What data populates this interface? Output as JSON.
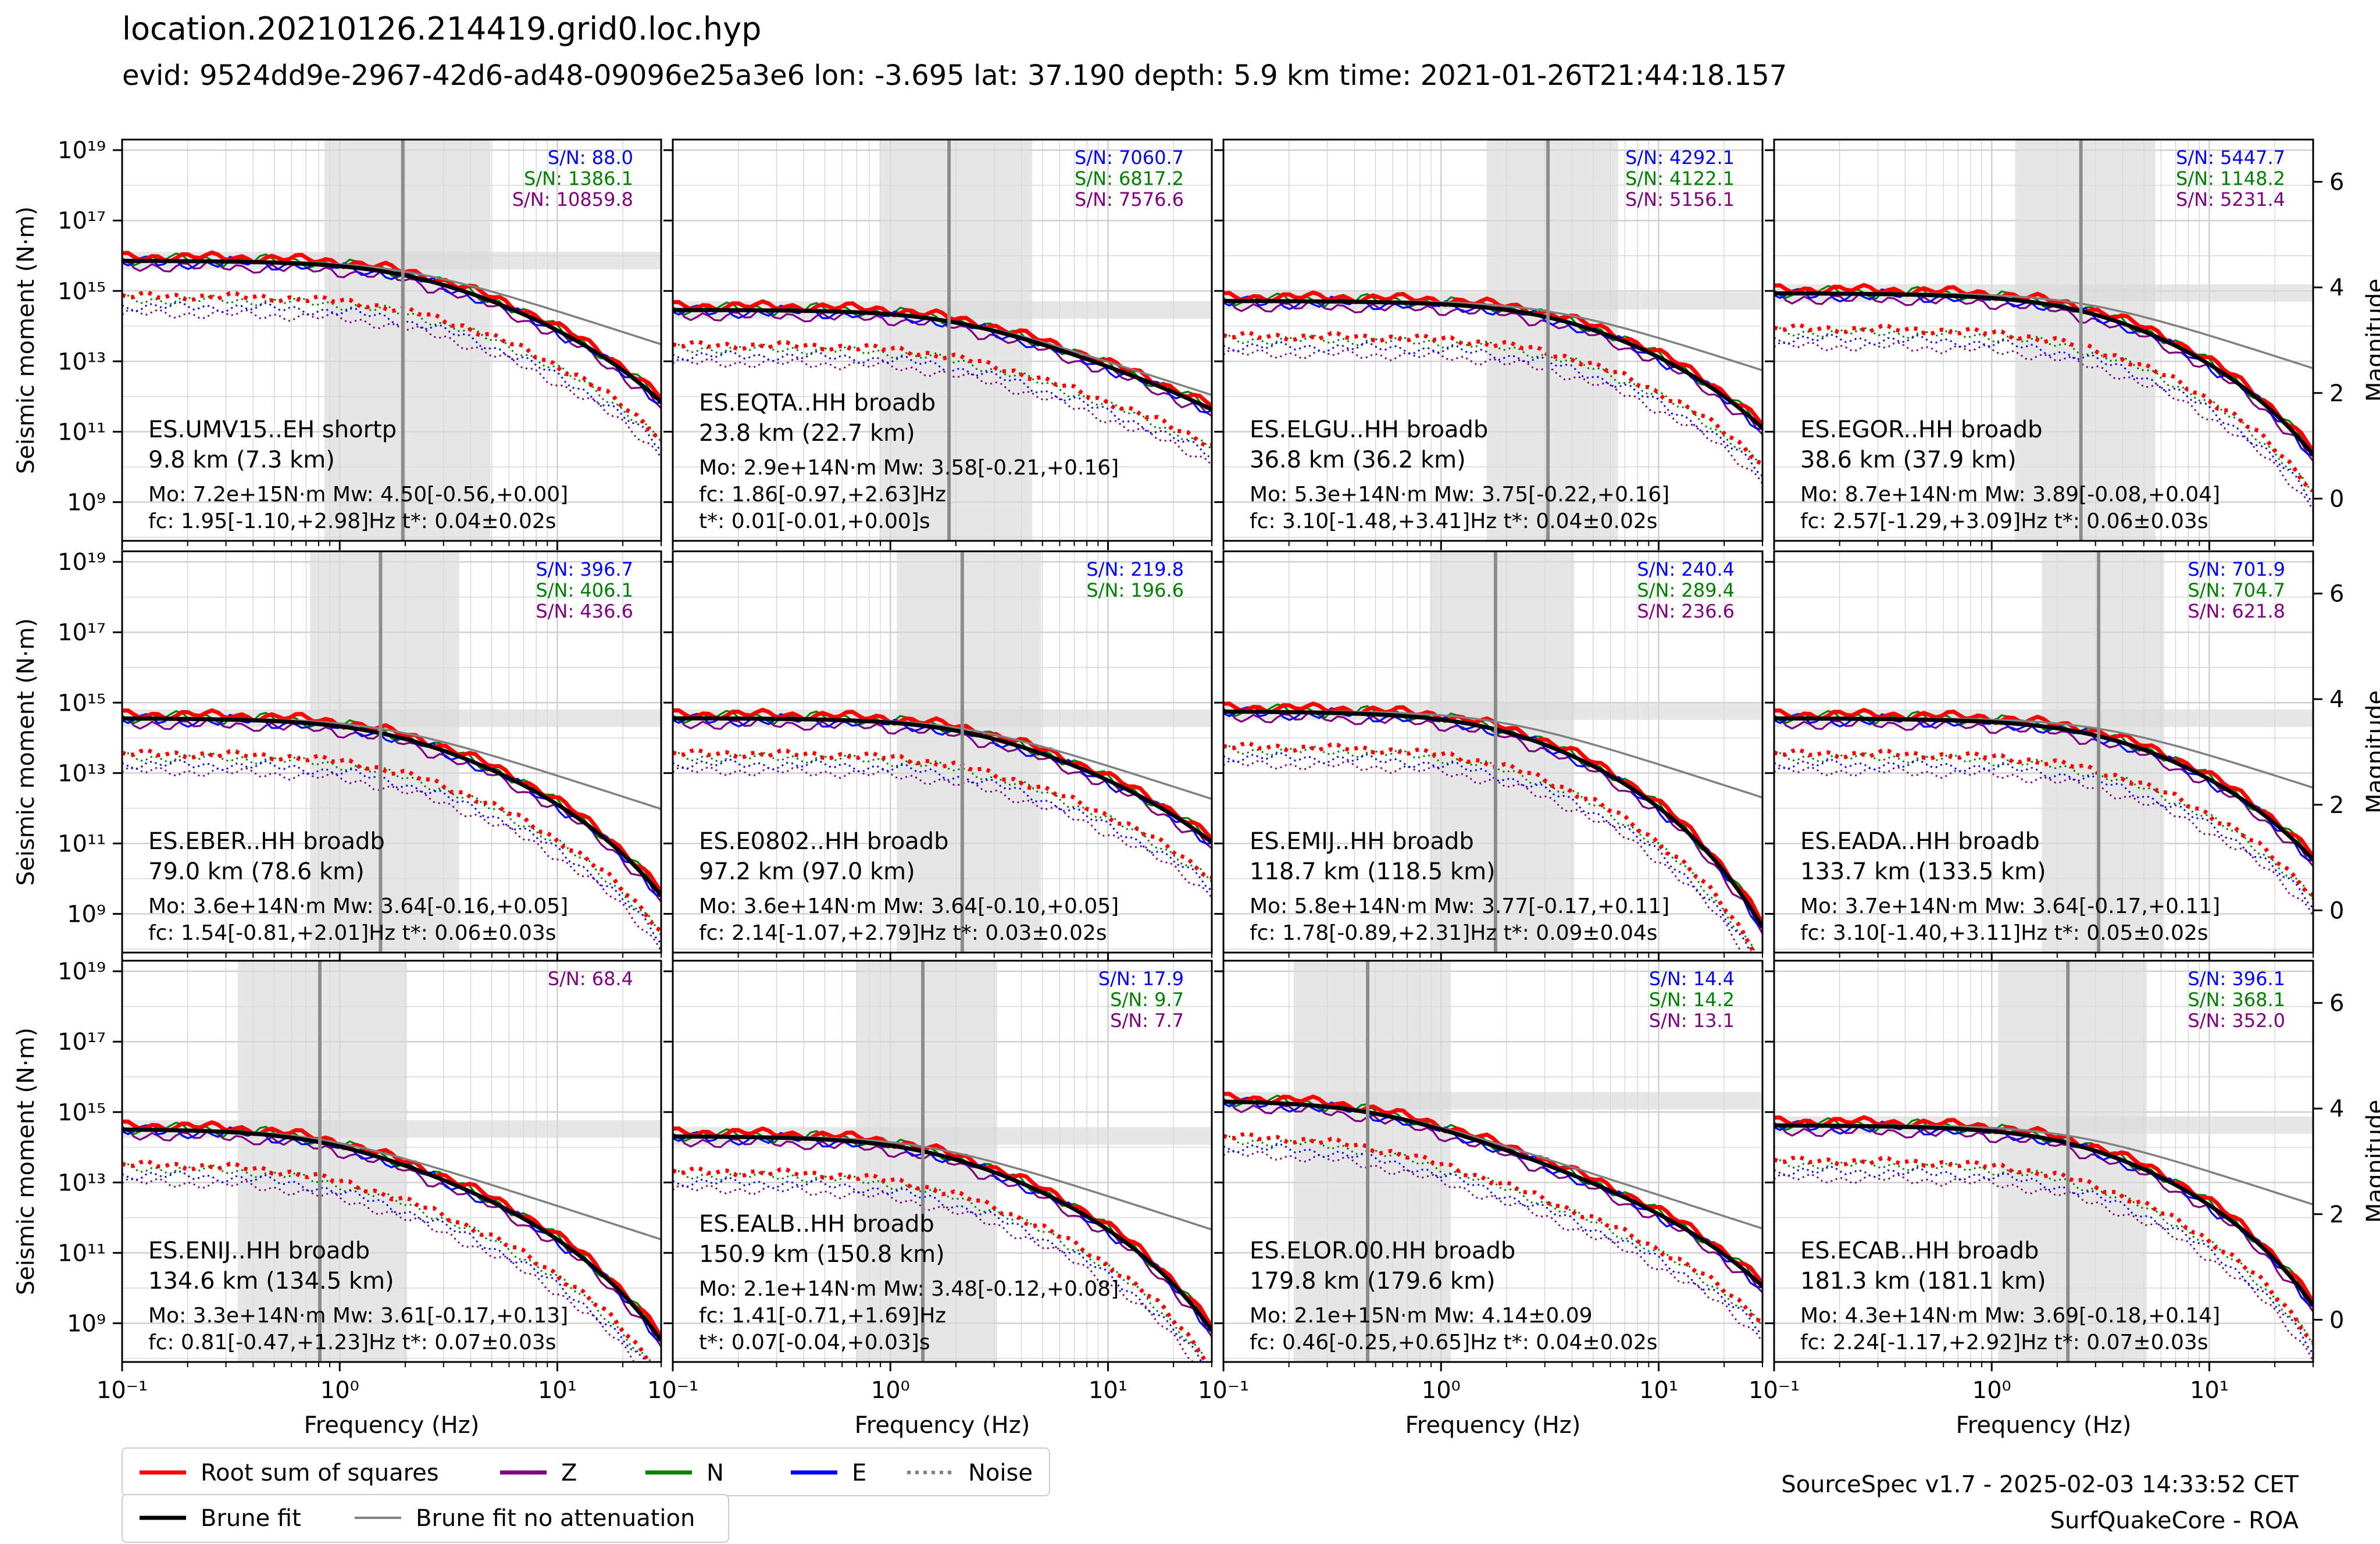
{
  "title": "location.20210126.214419.grid0.loc.hyp",
  "subtitle": "evid: 9524dd9e-2967-42d6-ad48-09096e25a3e6 lon: -3.695 lat: 37.190 depth: 5.9 km time: 2021-01-26T21:44:18.157",
  "footer": {
    "version": "SourceSpec v1.7 - 2025-02-03 14:33:52 CET",
    "institution": "SurfQuakeCore - ROA"
  },
  "colors": {
    "rss": "#ff0000",
    "z": "#800080",
    "n": "#008000",
    "e": "#0000ff",
    "noise": "#808080",
    "brune": "#000000",
    "brune_noatt": "#808080",
    "band": "#d9d9d9",
    "grid": "#d0d0d0"
  },
  "legend": [
    {
      "label": "Root sum of squares",
      "color": "#ff0000",
      "style": "solid"
    },
    {
      "label": "Z",
      "color": "#800080",
      "style": "solid"
    },
    {
      "label": "N",
      "color": "#008000",
      "style": "solid"
    },
    {
      "label": "E",
      "color": "#0000ff",
      "style": "solid"
    },
    {
      "label": "Noise",
      "color": "#808080",
      "style": "dotted"
    },
    {
      "label": "Brune fit",
      "color": "#000000",
      "style": "solid"
    },
    {
      "label": "Brune fit no attenuation",
      "color": "#808080",
      "style": "solid"
    }
  ],
  "chart_data": {
    "type": "line",
    "xlabel": "Frequency (Hz)",
    "ylabel": "Seismic moment (N·m)",
    "ylabel_right": "Magnitude",
    "xscale": "log",
    "yscale": "log",
    "xlim": [
      0.1,
      30
    ],
    "ylim_log10": [
      7.9,
      19.3
    ],
    "x_ticks": [
      "10⁻¹",
      "10⁰",
      "10¹"
    ],
    "y_ticks": [
      "10⁹",
      "10¹¹",
      "10¹³",
      "10¹⁵",
      "10¹⁷",
      "10¹⁹"
    ],
    "right_ticks": [
      "0",
      "2",
      "4",
      "6"
    ],
    "grid": true,
    "panels": [
      {
        "station": "ES.UMV15..EH shortp",
        "distance": "9.8 km (7.3 km)",
        "info": [
          "Mo: 7.2e+15N·m Mw: 4.50[-0.56,+0.00]",
          "fc: 1.95[-1.10,+2.98]Hz t*: 0.04±0.02s"
        ],
        "sn": [
          {
            "comp": "E",
            "text": "S/N: 88.0"
          },
          {
            "comp": "N",
            "text": "S/N: 1386.1"
          },
          {
            "comp": "Z",
            "text": "S/N: 10859.8"
          }
        ],
        "fc": 1.95,
        "fc_lo": 0.85,
        "fc_hi": 4.93,
        "mo_log": 15.86,
        "tstar": 0.04
      },
      {
        "station": "ES.EQTA..HH broadb",
        "distance": "23.8 km (22.7 km)",
        "info": [
          "Mo: 2.9e+14N·m Mw: 3.58[-0.21,+0.16]",
          "fc: 1.86[-0.97,+2.63]Hz",
          "t*: 0.01[-0.01,+0.00]s"
        ],
        "sn": [
          {
            "comp": "E",
            "text": "S/N: 7060.7"
          },
          {
            "comp": "N",
            "text": "S/N: 6817.2"
          },
          {
            "comp": "Z",
            "text": "S/N: 7576.6"
          }
        ],
        "fc": 1.86,
        "fc_lo": 0.89,
        "fc_hi": 4.49,
        "mo_log": 14.46,
        "tstar": 0.01
      },
      {
        "station": "ES.ELGU..HH broadb",
        "distance": "36.8 km (36.2 km)",
        "info": [
          "Mo: 5.3e+14N·m Mw: 3.75[-0.22,+0.16]",
          "fc: 3.10[-1.48,+3.41]Hz t*: 0.04±0.02s"
        ],
        "sn": [
          {
            "comp": "E",
            "text": "S/N: 4292.1"
          },
          {
            "comp": "N",
            "text": "S/N: 4122.1"
          },
          {
            "comp": "Z",
            "text": "S/N: 5156.1"
          }
        ],
        "fc": 3.1,
        "fc_lo": 1.62,
        "fc_hi": 6.51,
        "mo_log": 14.72,
        "tstar": 0.04
      },
      {
        "station": "ES.EGOR..HH broadb",
        "distance": "38.6 km (37.9 km)",
        "info": [
          "Mo: 8.7e+14N·m Mw: 3.89[-0.08,+0.04]",
          "fc: 2.57[-1.29,+3.09]Hz t*: 0.06±0.03s"
        ],
        "sn": [
          {
            "comp": "E",
            "text": "S/N: 5447.7"
          },
          {
            "comp": "N",
            "text": "S/N: 1148.2"
          },
          {
            "comp": "Z",
            "text": "S/N: 5231.4"
          }
        ],
        "fc": 2.57,
        "fc_lo": 1.28,
        "fc_hi": 5.66,
        "mo_log": 14.94,
        "tstar": 0.06
      },
      {
        "station": "ES.EBER..HH broadb",
        "distance": "79.0 km (78.6 km)",
        "info": [
          "Mo: 3.6e+14N·m Mw: 3.64[-0.16,+0.05]",
          "fc: 1.54[-0.81,+2.01]Hz t*: 0.06±0.03s"
        ],
        "sn": [
          {
            "comp": "E",
            "text": "S/N: 396.7"
          },
          {
            "comp": "N",
            "text": "S/N: 406.1"
          },
          {
            "comp": "Z",
            "text": "S/N: 436.6"
          }
        ],
        "fc": 1.54,
        "fc_lo": 0.73,
        "fc_hi": 3.55,
        "mo_log": 14.56,
        "tstar": 0.06
      },
      {
        "station": "ES.E0802..HH broadb",
        "distance": "97.2 km (97.0 km)",
        "info": [
          "Mo: 3.6e+14N·m Mw: 3.64[-0.10,+0.05]",
          "fc: 2.14[-1.07,+2.79]Hz t*: 0.03±0.02s"
        ],
        "sn": [
          {
            "comp": "E",
            "text": "S/N: 219.8"
          },
          {
            "comp": "N",
            "text": "S/N: 196.6"
          }
        ],
        "fc": 2.14,
        "fc_lo": 1.07,
        "fc_hi": 4.93,
        "mo_log": 14.56,
        "tstar": 0.03
      },
      {
        "station": "ES.EMIJ..HH broadb",
        "distance": "118.7 km (118.5 km)",
        "info": [
          "Mo: 5.8e+14N·m Mw: 3.77[-0.17,+0.11]",
          "fc: 1.78[-0.89,+2.31]Hz t*: 0.09±0.04s"
        ],
        "sn": [
          {
            "comp": "E",
            "text": "S/N: 240.4"
          },
          {
            "comp": "N",
            "text": "S/N: 289.4"
          },
          {
            "comp": "Z",
            "text": "S/N: 236.6"
          }
        ],
        "fc": 1.78,
        "fc_lo": 0.89,
        "fc_hi": 4.09,
        "mo_log": 14.76,
        "tstar": 0.09
      },
      {
        "station": "ES.EADA..HH broadb",
        "distance": "133.7 km (133.5 km)",
        "info": [
          "Mo: 3.7e+14N·m Mw: 3.64[-0.17,+0.11]",
          "fc: 3.10[-1.40,+3.11]Hz t*: 0.05±0.02s"
        ],
        "sn": [
          {
            "comp": "E",
            "text": "S/N: 701.9"
          },
          {
            "comp": "N",
            "text": "S/N: 704.7"
          },
          {
            "comp": "Z",
            "text": "S/N: 621.8"
          }
        ],
        "fc": 3.1,
        "fc_lo": 1.7,
        "fc_hi": 6.21,
        "mo_log": 14.56,
        "tstar": 0.05
      },
      {
        "station": "ES.ENIJ..HH broadb",
        "distance": "134.6 km (134.5 km)",
        "info": [
          "Mo: 3.3e+14N·m Mw: 3.61[-0.17,+0.13]",
          "fc: 0.81[-0.47,+1.23]Hz t*: 0.07±0.03s"
        ],
        "sn": [
          {
            "comp": "Z",
            "text": "S/N: 68.4"
          }
        ],
        "fc": 0.81,
        "fc_lo": 0.34,
        "fc_hi": 2.04,
        "mo_log": 14.52,
        "tstar": 0.07
      },
      {
        "station": "ES.EALB..HH broadb",
        "distance": "150.9 km (150.8 km)",
        "info": [
          "Mo: 2.1e+14N·m Mw: 3.48[-0.12,+0.08]",
          "fc: 1.41[-0.71,+1.69]Hz",
          "t*: 0.07[-0.04,+0.03]s"
        ],
        "sn": [
          {
            "comp": "E",
            "text": "S/N: 17.9"
          },
          {
            "comp": "N",
            "text": "S/N: 9.7"
          },
          {
            "comp": "Z",
            "text": "S/N: 7.7"
          }
        ],
        "fc": 1.41,
        "fc_lo": 0.7,
        "fc_hi": 3.1,
        "mo_log": 14.32,
        "tstar": 0.07
      },
      {
        "station": "ES.ELOR.00.HH broadb",
        "distance": "179.8 km (179.6 km)",
        "info": [
          "Mo: 2.1e+15N·m Mw: 4.14±0.09",
          "fc: 0.46[-0.25,+0.65]Hz t*: 0.04±0.02s"
        ],
        "sn": [
          {
            "comp": "E",
            "text": "S/N: 14.4"
          },
          {
            "comp": "N",
            "text": "S/N: 14.2"
          },
          {
            "comp": "Z",
            "text": "S/N: 13.1"
          }
        ],
        "fc": 0.46,
        "fc_lo": 0.21,
        "fc_hi": 1.11,
        "mo_log": 15.32,
        "tstar": 0.04
      },
      {
        "station": "ES.ECAB..HH broadb",
        "distance": "181.3 km (181.1 km)",
        "info": [
          "Mo: 4.3e+14N·m Mw: 3.69[-0.18,+0.14]",
          "fc: 2.24[-1.17,+2.92]Hz t*: 0.07±0.03s"
        ],
        "sn": [
          {
            "comp": "E",
            "text": "S/N: 396.1"
          },
          {
            "comp": "N",
            "text": "S/N: 368.1"
          },
          {
            "comp": "Z",
            "text": "S/N: 352.0"
          }
        ],
        "fc": 2.24,
        "fc_lo": 1.07,
        "fc_hi": 5.16,
        "mo_log": 14.63,
        "tstar": 0.07
      }
    ]
  }
}
